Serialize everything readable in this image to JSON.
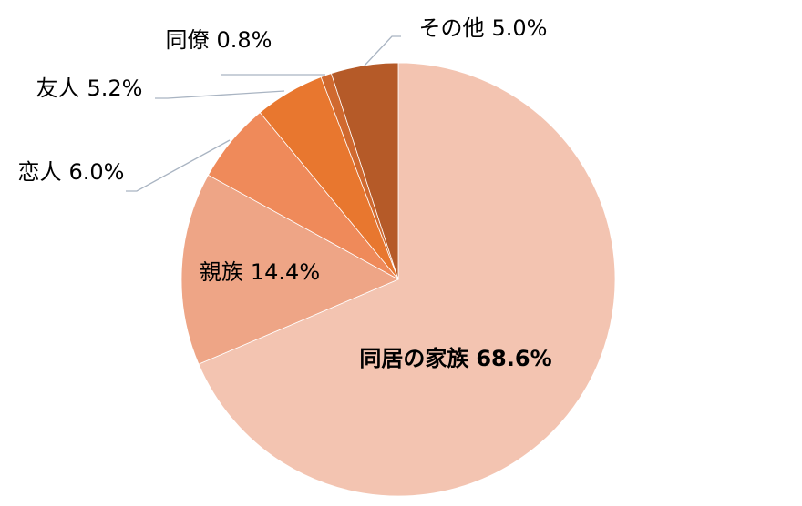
{
  "chart_data": {
    "type": "pie",
    "categories": [
      "同居の家族",
      "親族",
      "恋人",
      "友人",
      "同僚",
      "その他"
    ],
    "values": [
      68.6,
      14.4,
      6.0,
      5.2,
      0.8,
      5.0
    ],
    "value_labels": [
      "68.6%",
      "14.4%",
      "6.0%",
      "5.2%",
      "0.8%",
      "5.0%"
    ],
    "colors": [
      "#f3c4b1",
      "#eea586",
      "#ef8a5a",
      "#e8772f",
      "#d0692f",
      "#b55a28"
    ]
  }
}
